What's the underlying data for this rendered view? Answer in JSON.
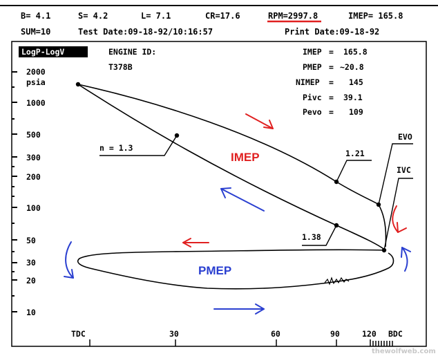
{
  "header": {
    "b": "B= 4.1",
    "s": "S= 4.2",
    "l": "L= 7.1",
    "cr": "CR=17.6",
    "rpm": "RPM=2997.8",
    "imep": "IMEP= 165.8",
    "sum": "SUM=10",
    "test_date": "Test Date:09-18-92/10:16:57",
    "print_date": "Print Date:09-18-92"
  },
  "plot_mode": "LogP-LogV",
  "engine_id_label": "ENGINE ID:",
  "engine_id": "T378B",
  "stats": [
    {
      "label": "IMEP",
      "value": "165.8"
    },
    {
      "label": "PMEP",
      "value": "~20.8"
    },
    {
      "label": "NIMEP",
      "value": "145"
    },
    {
      "label": "Pivc",
      "value": "39.1"
    },
    {
      "label": "Pevo",
      "value": "109"
    }
  ],
  "y_unit": "psia",
  "y_ticks": [
    "2000",
    "1000",
    "500",
    "300",
    "200",
    "100",
    "50",
    "30",
    "20",
    "10"
  ],
  "x_ticks": [
    "TDC",
    "30",
    "60",
    "90",
    "120",
    "BDC"
  ],
  "annotations": {
    "n_compression": "n = 1.3",
    "n_expansion": "1.21",
    "n_low": "1.38",
    "evo": "EVO",
    "ivc": "IVC"
  },
  "loop_labels": {
    "imep": "IMEP",
    "pmep": "PMEP"
  },
  "watermark": "thewolfweb.com",
  "colors": {
    "imep_arrow": "#e02020",
    "pmep_arrow": "#2a3fd0",
    "rpm_underline": "#e02020",
    "ink": "#000000"
  }
}
